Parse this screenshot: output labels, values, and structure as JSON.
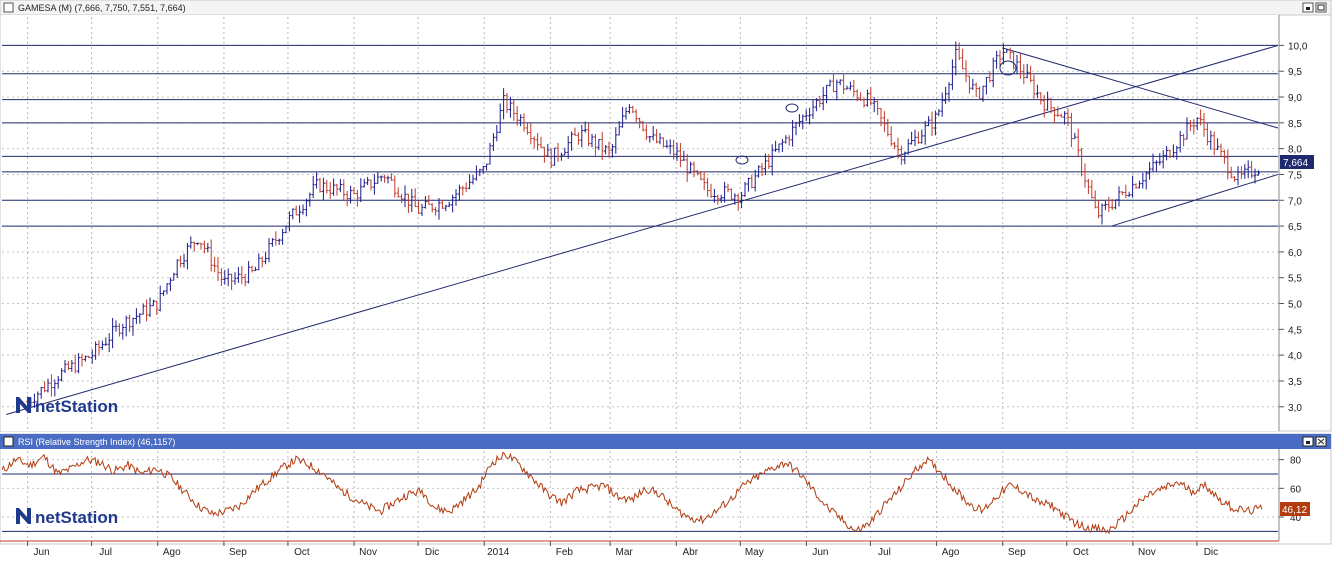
{
  "top_panel": {
    "title": "GAMESA (M) (7,666, 7,750, 7,551, 7,664)",
    "current_price_label": "7,664",
    "watermark": "netStation",
    "colors": {
      "up": "#1a1a8c",
      "down": "#c0392b",
      "line": "#1f2a6e",
      "price_badge": "#1f2a6e"
    }
  },
  "bottom_panel": {
    "title": "RSI (Relative Strength Index) (46,1157)",
    "current_value_label": "46,12",
    "watermark": "netStation",
    "colors": {
      "line": "#b23b0f",
      "badge": "#b23b0f"
    }
  },
  "x_axis": {
    "months": [
      "Jun",
      "Jul",
      "Ago",
      "Sep",
      "Oct",
      "Nov",
      "Dic",
      "2014",
      "Feb",
      "Mar",
      "Abr",
      "May",
      "Jun",
      "Jul",
      "Ago",
      "Sep",
      "Oct",
      "Nov",
      "Dic"
    ]
  },
  "chart_data": [
    {
      "type": "ohlc",
      "title": "GAMESA (M) (7,666, 7,750, 7,551, 7,664)",
      "y_ticks": [
        "3,0",
        "3,5",
        "4,0",
        "4,5",
        "5,0",
        "5,5",
        "6,0",
        "6,5",
        "7,0",
        "7,5",
        "8,0",
        "8,5",
        "9,0",
        "9,5",
        "10,0"
      ],
      "ylim": [
        2.55,
        10.55
      ],
      "horizontal_levels": [
        10.0,
        9.45,
        8.95,
        8.5,
        7.85,
        7.55,
        7.0,
        6.5
      ],
      "trendlines": [
        {
          "from": [
            "2013-06",
            2.85
          ],
          "to": [
            "2014-12",
            10.0
          ]
        },
        {
          "from": [
            "2014-09",
            9.95
          ],
          "to": [
            "2014-12",
            8.4
          ]
        },
        {
          "from": [
            "2014-10",
            6.5
          ],
          "to": [
            "2014-12",
            7.5
          ]
        }
      ],
      "close_path": [
        [
          "2013-06-01",
          3.1
        ],
        [
          "2013-06-15",
          3.6
        ],
        [
          "2013-07-01",
          4.0
        ],
        [
          "2013-07-15",
          4.6
        ],
        [
          "2013-08-01",
          5.0
        ],
        [
          "2013-08-10",
          5.8
        ],
        [
          "2013-08-20",
          6.3
        ],
        [
          "2013-09-01",
          5.4
        ],
        [
          "2013-09-15",
          5.6
        ],
        [
          "2013-10-01",
          6.6
        ],
        [
          "2013-10-15",
          7.3
        ],
        [
          "2013-11-01",
          7.1
        ],
        [
          "2013-11-15",
          7.5
        ],
        [
          "2013-12-01",
          6.8
        ],
        [
          "2013-12-15",
          7.0
        ],
        [
          "2014-01-01",
          7.6
        ],
        [
          "2014-01-10",
          8.9
        ],
        [
          "2014-01-20",
          8.5
        ],
        [
          "2014-02-01",
          7.8
        ],
        [
          "2014-02-15",
          8.3
        ],
        [
          "2014-03-01",
          7.9
        ],
        [
          "2014-03-10",
          8.9
        ],
        [
          "2014-03-20",
          8.2
        ],
        [
          "2014-04-01",
          7.9
        ],
        [
          "2014-04-15",
          7.2
        ],
        [
          "2014-05-01",
          7.1
        ],
        [
          "2014-05-15",
          7.8
        ],
        [
          "2014-06-01",
          8.7
        ],
        [
          "2014-06-15",
          9.3
        ],
        [
          "2014-07-01",
          8.9
        ],
        [
          "2014-07-15",
          7.9
        ],
        [
          "2014-08-01",
          8.6
        ],
        [
          "2014-08-10",
          9.8
        ],
        [
          "2014-08-20",
          9.0
        ],
        [
          "2014-09-01",
          9.9
        ],
        [
          "2014-09-10",
          9.5
        ],
        [
          "2014-09-20",
          8.9
        ],
        [
          "2014-10-01",
          8.6
        ],
        [
          "2014-10-15",
          6.7
        ],
        [
          "2014-11-01",
          7.3
        ],
        [
          "2014-11-15",
          7.8
        ],
        [
          "2014-12-01",
          8.6
        ],
        [
          "2014-12-10",
          8.0
        ],
        [
          "2014-12-20",
          7.4
        ],
        [
          "2014-12-31",
          7.664
        ]
      ]
    },
    {
      "type": "line",
      "title": "RSI (Relative Strength Index) (46,1157)",
      "y_ticks": [
        "40",
        "60",
        "80"
      ],
      "ylim": [
        24,
        86
      ],
      "horizontal_levels": [
        70,
        30
      ],
      "values": [
        72,
        80,
        76,
        82,
        70,
        74,
        80,
        78,
        72,
        76,
        70,
        74,
        68,
        58,
        48,
        42,
        44,
        48,
        58,
        66,
        74,
        80,
        76,
        70,
        60,
        54,
        48,
        44,
        50,
        56,
        58,
        46,
        44,
        52,
        60,
        78,
        84,
        76,
        66,
        56,
        50,
        58,
        60,
        62,
        54,
        52,
        60,
        56,
        46,
        40,
        38,
        44,
        52,
        62,
        68,
        74,
        78,
        70,
        58,
        46,
        38,
        30,
        36,
        48,
        58,
        70,
        80,
        72,
        60,
        50,
        44,
        54,
        62,
        58,
        50,
        48,
        40,
        34,
        32,
        30,
        38,
        48,
        56,
        60,
        64,
        58,
        62,
        52,
        46,
        44,
        46
      ]
    }
  ]
}
